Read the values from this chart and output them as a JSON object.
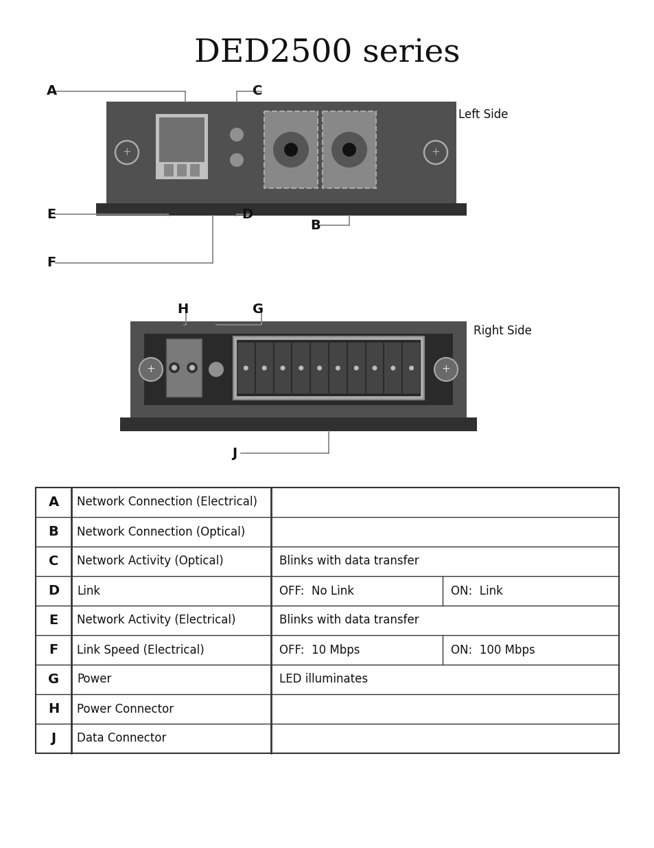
{
  "title": "DED2500 series",
  "title_fontsize": 34,
  "bg_color": "#ffffff",
  "device_bg": "#505050",
  "device_dark": "#2a2a2a",
  "device_rail": "#303030",
  "screw_ring": "#aaaaaa",
  "rj45_outer": "#c0c0c0",
  "rj45_inner": "#707070",
  "led_color": "#909090",
  "opt_bg": "#888888",
  "opt_circle": "#505050",
  "opt_hole": "#111111",
  "pwr_bg": "#707070",
  "pwr_pin": "#cccccc",
  "data_conn_outer": "#aaaaaa",
  "data_conn_inner": "#333333",
  "data_pin": "#555555",
  "data_dot": "#bbbbbb",
  "line_color": "#888888",
  "label_color": "#111111",
  "left_side_label": "Left Side",
  "right_side_label": "Right Side",
  "table_rows": [
    [
      "A",
      "Network Connection (Electrical)",
      "",
      ""
    ],
    [
      "B",
      "Network Connection (Optical)",
      "",
      ""
    ],
    [
      "C",
      "Network Activity (Optical)",
      "Blinks with data transfer",
      ""
    ],
    [
      "D",
      "Link",
      "OFF:  No Link",
      "ON:  Link"
    ],
    [
      "E",
      "Network Activity (Electrical)",
      "Blinks with data transfer",
      ""
    ],
    [
      "F",
      "Link Speed (Electrical)",
      "OFF:  10 Mbps",
      "ON:  100 Mbps"
    ],
    [
      "G",
      "Power",
      "LED illuminates",
      ""
    ],
    [
      "H",
      "Power Connector",
      "",
      ""
    ],
    [
      "J",
      "Data Connector",
      "",
      ""
    ]
  ]
}
